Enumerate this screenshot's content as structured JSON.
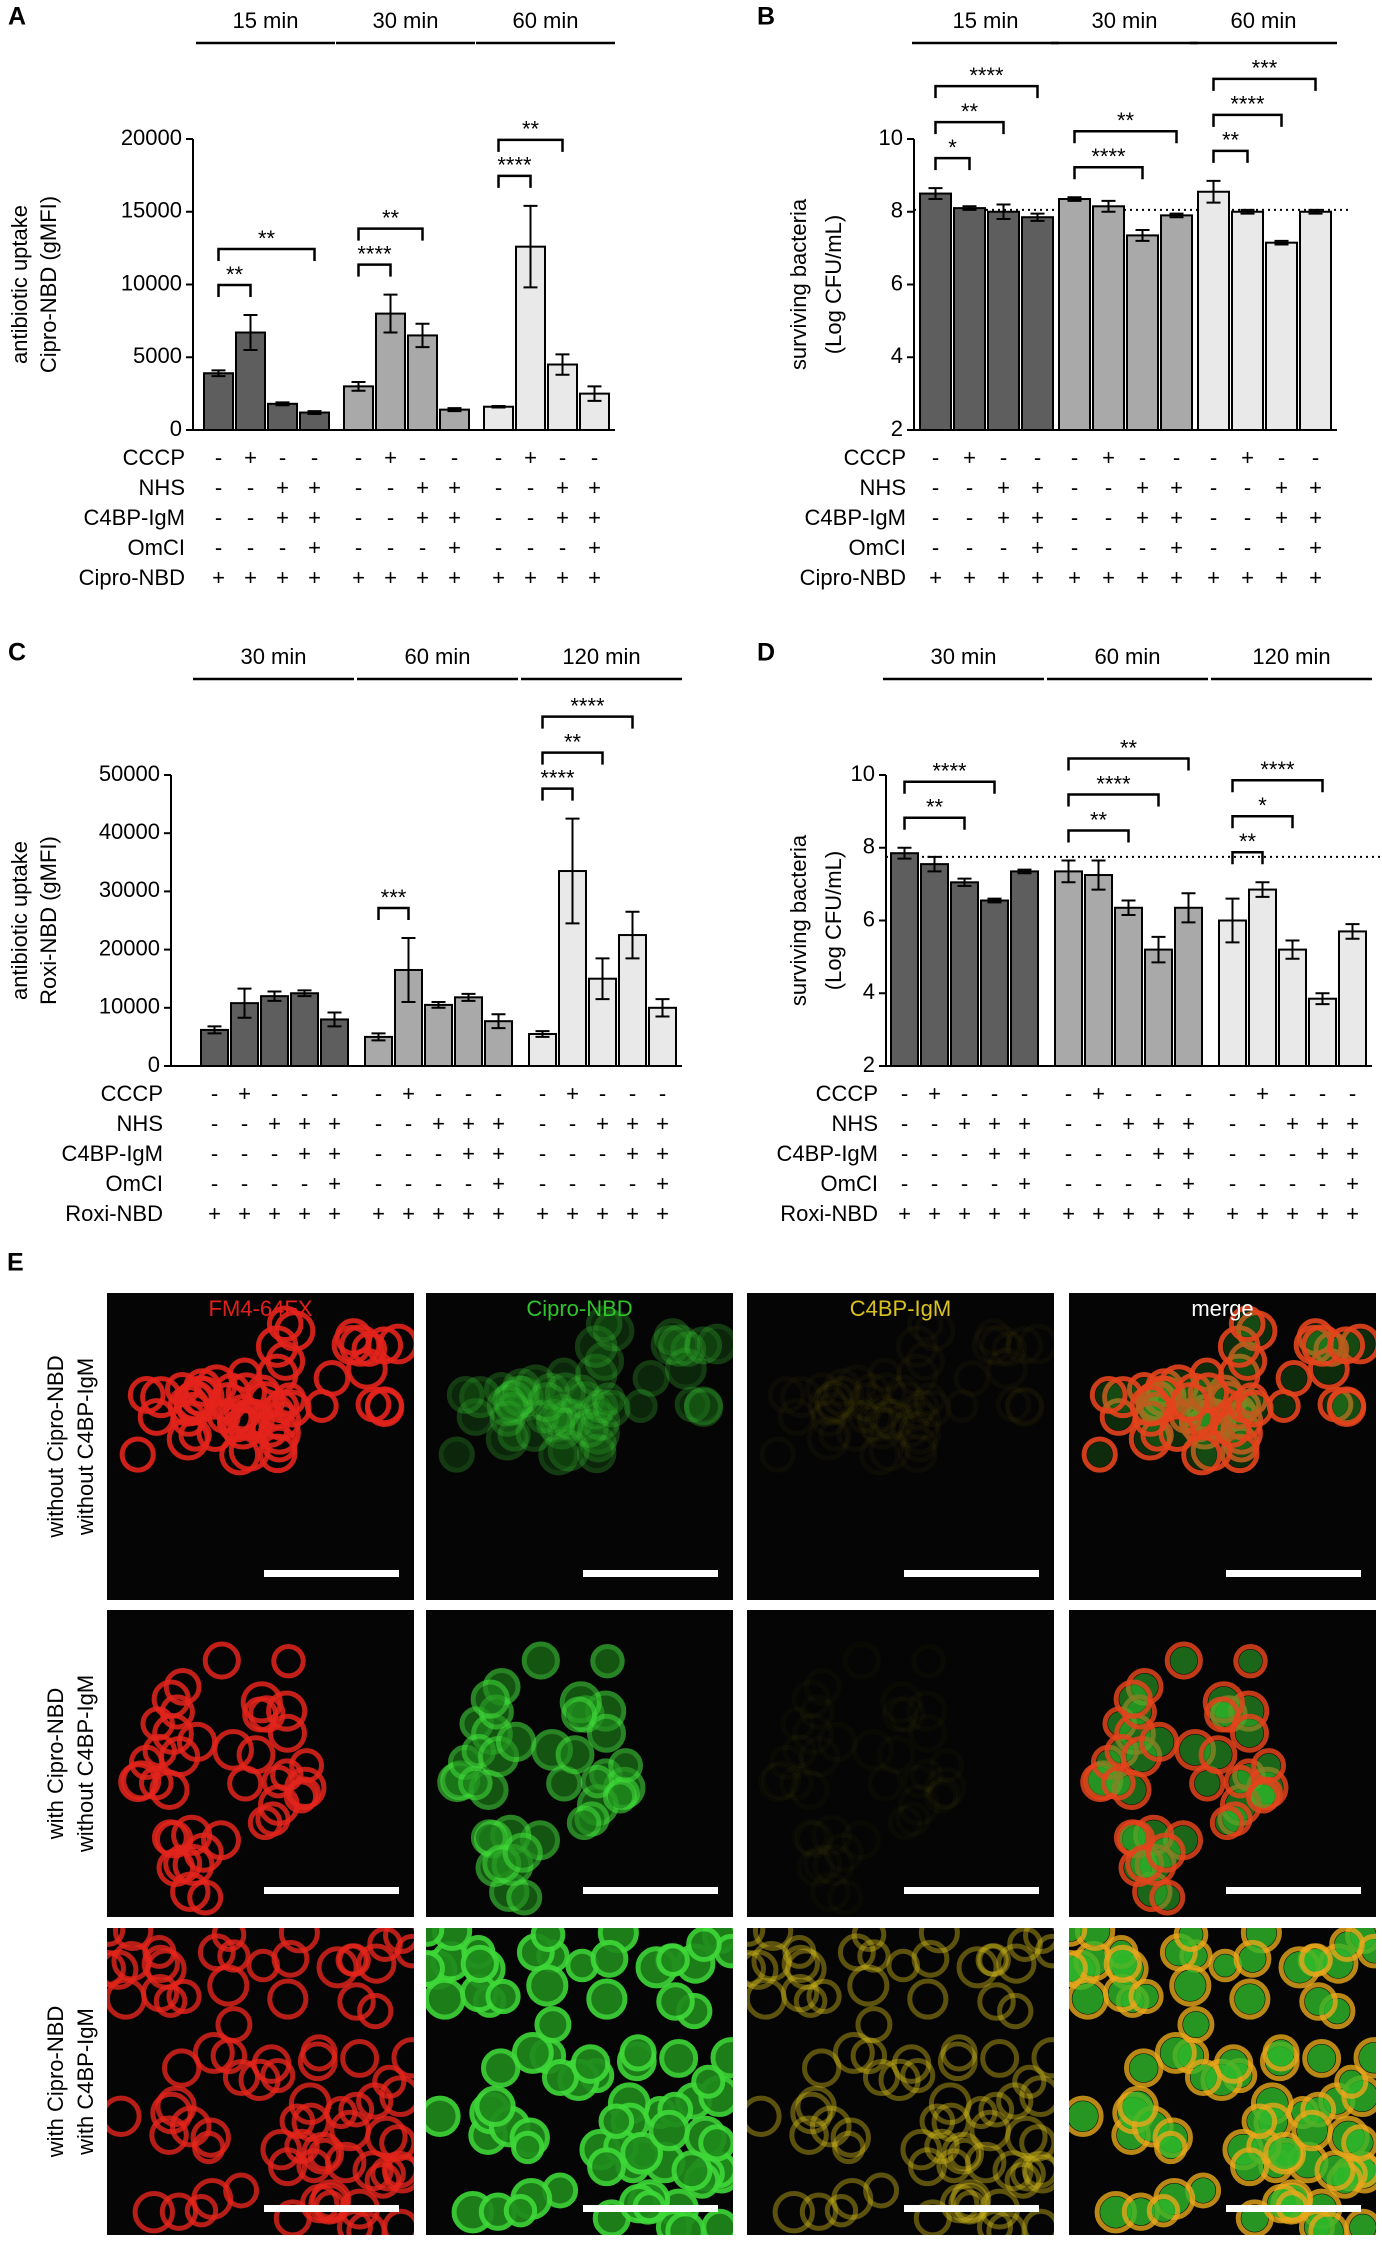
{
  "chart_data": [
    {
      "panel": "A",
      "type": "bar",
      "y_label": [
        "antibiotic uptake",
        "Cipro-NBD (gMFI)"
      ],
      "ylim": [
        0,
        20000
      ],
      "yticks": [
        0,
        5000,
        10000,
        15000,
        20000
      ],
      "conditions": [
        {
          "label": "CCCP",
          "marks": [
            "-",
            "+",
            "-",
            "-"
          ]
        },
        {
          "label": "NHS",
          "marks": [
            "-",
            "-",
            "+",
            "+"
          ]
        },
        {
          "label": "C4BP-IgM",
          "marks": [
            "-",
            "-",
            "+",
            "+"
          ]
        },
        {
          "label": "OmCI",
          "marks": [
            "-",
            "-",
            "-",
            "+"
          ]
        },
        {
          "label": "Cipro-NBD",
          "marks": [
            "+",
            "+",
            "+",
            "+"
          ]
        }
      ],
      "series": [
        {
          "name": "15 min",
          "color": "#5e5e5e",
          "values": [
            3900,
            6700,
            1800,
            1200
          ],
          "errors": [
            200,
            1200,
            100,
            100
          ],
          "significance": [
            {
              "pair": [
                0,
                1
              ],
              "label": "**"
            },
            {
              "pair": [
                0,
                3
              ],
              "label": "**"
            }
          ]
        },
        {
          "name": "30 min",
          "color": "#a9a9a9",
          "values": [
            3000,
            8000,
            6500,
            1400
          ],
          "errors": [
            300,
            1300,
            800,
            100
          ],
          "significance": [
            {
              "pair": [
                0,
                1
              ],
              "label": "****"
            },
            {
              "pair": [
                0,
                2
              ],
              "label": "**"
            }
          ]
        },
        {
          "name": "60 min",
          "color": "#e9e9e9",
          "values": [
            1600,
            12600,
            4500,
            2500
          ],
          "errors": [
            50,
            2800,
            700,
            500
          ],
          "significance": [
            {
              "pair": [
                0,
                1
              ],
              "label": "****"
            },
            {
              "pair": [
                0,
                2
              ],
              "label": "**"
            }
          ]
        }
      ]
    },
    {
      "panel": "B",
      "type": "bar",
      "y_label": [
        "surviving bacteria",
        "(Log CFU/mL)"
      ],
      "ylim": [
        2,
        10
      ],
      "yticks": [
        2,
        4,
        6,
        8,
        10
      ],
      "reference_line": 8.05,
      "conditions": [
        {
          "label": "CCCP",
          "marks": [
            "-",
            "+",
            "-",
            "-"
          ]
        },
        {
          "label": "NHS",
          "marks": [
            "-",
            "-",
            "+",
            "+"
          ]
        },
        {
          "label": "C4BP-IgM",
          "marks": [
            "-",
            "-",
            "+",
            "+"
          ]
        },
        {
          "label": "OmCI",
          "marks": [
            "-",
            "-",
            "-",
            "+"
          ]
        },
        {
          "label": "Cipro-NBD",
          "marks": [
            "+",
            "+",
            "+",
            "+"
          ]
        }
      ],
      "series": [
        {
          "name": "15 min",
          "color": "#5e5e5e",
          "values": [
            8.5,
            8.1,
            8.0,
            7.85
          ],
          "errors": [
            0.15,
            0.05,
            0.2,
            0.1
          ],
          "significance": [
            {
              "pair": [
                0,
                1
              ],
              "label": "*"
            },
            {
              "pair": [
                0,
                2
              ],
              "label": "**"
            },
            {
              "pair": [
                0,
                3
              ],
              "label": "****"
            }
          ]
        },
        {
          "name": "30 min",
          "color": "#a9a9a9",
          "values": [
            8.35,
            8.15,
            7.35,
            7.9
          ],
          "errors": [
            0.05,
            0.15,
            0.15,
            0.05
          ],
          "significance": [
            {
              "pair": [
                0,
                2
              ],
              "label": "****"
            },
            {
              "pair": [
                0,
                3
              ],
              "label": "**"
            }
          ]
        },
        {
          "name": "60 min",
          "color": "#e9e9e9",
          "values": [
            8.55,
            8.0,
            7.15,
            8.0
          ],
          "errors": [
            0.3,
            0.05,
            0.05,
            0.05
          ],
          "significance": [
            {
              "pair": [
                0,
                1
              ],
              "label": "**"
            },
            {
              "pair": [
                0,
                2
              ],
              "label": "****"
            },
            {
              "pair": [
                0,
                3
              ],
              "label": "***"
            }
          ]
        }
      ]
    },
    {
      "panel": "C",
      "type": "bar",
      "y_label": [
        "antibiotic uptake",
        "Roxi-NBD (gMFI)"
      ],
      "ylim": [
        0,
        50000
      ],
      "yticks": [
        0,
        10000,
        20000,
        30000,
        40000,
        50000
      ],
      "conditions": [
        {
          "label": "CCCP",
          "marks": [
            "-",
            "+",
            "-",
            "-",
            "-"
          ]
        },
        {
          "label": "NHS",
          "marks": [
            "-",
            "-",
            "+",
            "+",
            "+"
          ]
        },
        {
          "label": "C4BP-IgM",
          "marks": [
            "-",
            "-",
            "-",
            "+",
            "+"
          ]
        },
        {
          "label": "OmCI",
          "marks": [
            "-",
            "-",
            "-",
            "-",
            "+"
          ]
        },
        {
          "label": "Roxi-NBD",
          "marks": [
            "+",
            "+",
            "+",
            "+",
            "+"
          ]
        }
      ],
      "series": [
        {
          "name": "30 min",
          "color": "#5e5e5e",
          "values": [
            6200,
            10800,
            12000,
            12500,
            8000
          ],
          "errors": [
            600,
            2500,
            800,
            500,
            1200
          ],
          "significance": []
        },
        {
          "name": "60 min",
          "color": "#a9a9a9",
          "values": [
            5000,
            16500,
            10500,
            11800,
            7700
          ],
          "errors": [
            600,
            5500,
            500,
            600,
            1200
          ],
          "significance": [
            {
              "pair": [
                0,
                1
              ],
              "label": "***"
            }
          ]
        },
        {
          "name": "120 min",
          "color": "#e9e9e9",
          "values": [
            5500,
            33500,
            15000,
            22500,
            10000
          ],
          "errors": [
            500,
            9000,
            3500,
            4000,
            1500
          ],
          "significance": [
            {
              "pair": [
                0,
                1
              ],
              "label": "****"
            },
            {
              "pair": [
                0,
                2
              ],
              "label": "**"
            },
            {
              "pair": [
                0,
                3
              ],
              "label": "****"
            }
          ]
        }
      ]
    },
    {
      "panel": "D",
      "type": "bar",
      "y_label": [
        "surviving bacteria",
        "(Log CFU/mL)"
      ],
      "ylim": [
        2,
        10
      ],
      "yticks": [
        2,
        4,
        6,
        8,
        10
      ],
      "reference_line": 7.75,
      "conditions": [
        {
          "label": "CCCP",
          "marks": [
            "-",
            "+",
            "-",
            "-",
            "-"
          ]
        },
        {
          "label": "NHS",
          "marks": [
            "-",
            "-",
            "+",
            "+",
            "+"
          ]
        },
        {
          "label": "C4BP-IgM",
          "marks": [
            "-",
            "-",
            "-",
            "+",
            "+"
          ]
        },
        {
          "label": "OmCI",
          "marks": [
            "-",
            "-",
            "-",
            "-",
            "+"
          ]
        },
        {
          "label": "Roxi-NBD",
          "marks": [
            "+",
            "+",
            "+",
            "+",
            "+"
          ]
        }
      ],
      "series": [
        {
          "name": "30 min",
          "color": "#5e5e5e",
          "values": [
            7.85,
            7.55,
            7.05,
            6.55,
            7.35
          ],
          "errors": [
            0.15,
            0.2,
            0.1,
            0.05,
            0.05
          ],
          "significance": [
            {
              "pair": [
                0,
                2
              ],
              "label": "**"
            },
            {
              "pair": [
                0,
                3
              ],
              "label": "****"
            }
          ]
        },
        {
          "name": "60 min",
          "color": "#a9a9a9",
          "values": [
            7.35,
            7.25,
            6.35,
            5.2,
            6.35
          ],
          "errors": [
            0.3,
            0.4,
            0.2,
            0.35,
            0.4
          ],
          "significance": [
            {
              "pair": [
                0,
                2
              ],
              "label": "**"
            },
            {
              "pair": [
                0,
                3
              ],
              "label": "****"
            },
            {
              "pair": [
                0,
                4
              ],
              "label": "**"
            }
          ]
        },
        {
          "name": "120 min",
          "color": "#e9e9e9",
          "values": [
            6.0,
            6.85,
            5.2,
            3.85,
            5.7
          ],
          "errors": [
            0.6,
            0.2,
            0.25,
            0.15,
            0.2
          ],
          "significance": [
            {
              "pair": [
                0,
                1
              ],
              "label": "**"
            },
            {
              "pair": [
                0,
                2
              ],
              "label": "*"
            },
            {
              "pair": [
                0,
                3
              ],
              "label": "****"
            }
          ]
        }
      ]
    }
  ],
  "image_panel": {
    "panel": "E",
    "columns": [
      {
        "label": "FM4-64FX",
        "color": "#e0201c"
      },
      {
        "label": "Cipro-NBD",
        "color": "#2fc42a"
      },
      {
        "label": "C4BP-IgM",
        "color": "#d9c21e"
      },
      {
        "label": "merge",
        "color": "#ffffff"
      }
    ],
    "rows": [
      [
        "without Cipro-NBD",
        "without C4BP-IgM"
      ],
      [
        "with Cipro-NBD",
        "without C4BP-IgM"
      ],
      [
        "with Cipro-NBD",
        "with C4BP-IgM"
      ]
    ]
  }
}
